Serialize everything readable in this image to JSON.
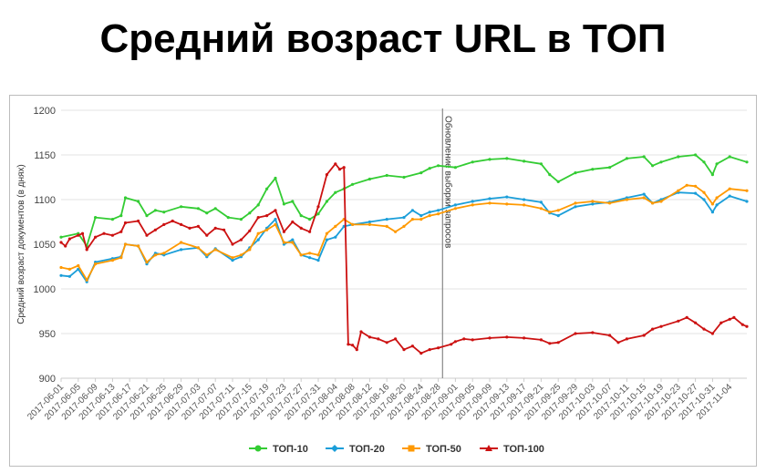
{
  "page": {
    "title": "Средний возраст URL в ТОП"
  },
  "chart_data": {
    "type": "line",
    "title": "Средний возраст URL в ТОП",
    "xlabel": "",
    "ylabel": "Средний возраст документов (в днях)",
    "ylim": [
      900,
      1200
    ],
    "yticks": [
      900,
      950,
      1000,
      1050,
      1100,
      1150,
      1200
    ],
    "grid": true,
    "legend": "bottom",
    "x_start": "2017-06-01",
    "x_end": "2017-11-08",
    "x_tick_labels": [
      "2017-06-01",
      "2017-06-05",
      "2017-06-09",
      "2017-06-13",
      "2017-06-17",
      "2017-06-21",
      "2017-06-25",
      "2017-06-29",
      "2017-07-03",
      "2017-07-07",
      "2017-07-11",
      "2017-07-15",
      "2017-07-19",
      "2017-07-23",
      "2017-07-27",
      "2017-07-31",
      "2017-08-04",
      "2017-08-08",
      "2017-08-12",
      "2017-08-16",
      "2017-08-20",
      "2017-08-24",
      "2017-08-28",
      "2017-09-01",
      "2017-09-05",
      "2017-09-09",
      "2017-09-13",
      "2017-09-17",
      "2017-09-21",
      "2017-09-25",
      "2017-09-29",
      "2017-10-03",
      "2017-10-07",
      "2017-10-11",
      "2017-10-15",
      "2017-10-19",
      "2017-10-23",
      "2017-10-27",
      "2017-10-31",
      "2017-11-04"
    ],
    "annotation": {
      "date": "2017-08-29",
      "text": "Обновление выборки запросов"
    },
    "series": [
      {
        "name": "ТОП-10",
        "color": "#33cc33",
        "points": [
          [
            "2017-06-01",
            1058
          ],
          [
            "2017-06-05",
            1062
          ],
          [
            "2017-06-07",
            1048
          ],
          [
            "2017-06-09",
            1080
          ],
          [
            "2017-06-13",
            1078
          ],
          [
            "2017-06-15",
            1082
          ],
          [
            "2017-06-16",
            1102
          ],
          [
            "2017-06-19",
            1098
          ],
          [
            "2017-06-21",
            1082
          ],
          [
            "2017-06-23",
            1088
          ],
          [
            "2017-06-25",
            1086
          ],
          [
            "2017-06-29",
            1092
          ],
          [
            "2017-07-03",
            1090
          ],
          [
            "2017-07-05",
            1085
          ],
          [
            "2017-07-07",
            1090
          ],
          [
            "2017-07-10",
            1080
          ],
          [
            "2017-07-13",
            1078
          ],
          [
            "2017-07-15",
            1085
          ],
          [
            "2017-07-17",
            1094
          ],
          [
            "2017-07-19",
            1112
          ],
          [
            "2017-07-21",
            1124
          ],
          [
            "2017-07-23",
            1095
          ],
          [
            "2017-07-25",
            1098
          ],
          [
            "2017-07-27",
            1082
          ],
          [
            "2017-07-29",
            1078
          ],
          [
            "2017-07-31",
            1084
          ],
          [
            "2017-08-02",
            1098
          ],
          [
            "2017-08-04",
            1108
          ],
          [
            "2017-08-06",
            1112
          ],
          [
            "2017-08-08",
            1117
          ],
          [
            "2017-08-12",
            1123
          ],
          [
            "2017-08-16",
            1127
          ],
          [
            "2017-08-20",
            1125
          ],
          [
            "2017-08-24",
            1130
          ],
          [
            "2017-08-26",
            1135
          ],
          [
            "2017-08-28",
            1138
          ],
          [
            "2017-09-01",
            1136
          ],
          [
            "2017-09-05",
            1142
          ],
          [
            "2017-09-09",
            1145
          ],
          [
            "2017-09-13",
            1146
          ],
          [
            "2017-09-17",
            1143
          ],
          [
            "2017-09-21",
            1140
          ],
          [
            "2017-09-23",
            1128
          ],
          [
            "2017-09-25",
            1120
          ],
          [
            "2017-09-29",
            1130
          ],
          [
            "2017-10-03",
            1134
          ],
          [
            "2017-10-07",
            1136
          ],
          [
            "2017-10-11",
            1146
          ],
          [
            "2017-10-15",
            1148
          ],
          [
            "2017-10-17",
            1138
          ],
          [
            "2017-10-19",
            1142
          ],
          [
            "2017-10-23",
            1148
          ],
          [
            "2017-10-27",
            1150
          ],
          [
            "2017-10-29",
            1142
          ],
          [
            "2017-10-31",
            1128
          ],
          [
            "2017-11-01",
            1140
          ],
          [
            "2017-11-04",
            1148
          ],
          [
            "2017-11-08",
            1142
          ]
        ]
      },
      {
        "name": "ТОП-20",
        "color": "#1a9ed9",
        "points": [
          [
            "2017-06-01",
            1015
          ],
          [
            "2017-06-03",
            1014
          ],
          [
            "2017-06-05",
            1022
          ],
          [
            "2017-06-07",
            1008
          ],
          [
            "2017-06-09",
            1030
          ],
          [
            "2017-06-13",
            1034
          ],
          [
            "2017-06-15",
            1036
          ],
          [
            "2017-06-16",
            1050
          ],
          [
            "2017-06-19",
            1048
          ],
          [
            "2017-06-21",
            1028
          ],
          [
            "2017-06-23",
            1040
          ],
          [
            "2017-06-25",
            1038
          ],
          [
            "2017-06-29",
            1044
          ],
          [
            "2017-07-03",
            1046
          ],
          [
            "2017-07-05",
            1036
          ],
          [
            "2017-07-07",
            1045
          ],
          [
            "2017-07-11",
            1032
          ],
          [
            "2017-07-13",
            1036
          ],
          [
            "2017-07-15",
            1046
          ],
          [
            "2017-07-17",
            1055
          ],
          [
            "2017-07-19",
            1068
          ],
          [
            "2017-07-21",
            1078
          ],
          [
            "2017-07-23",
            1050
          ],
          [
            "2017-07-25",
            1055
          ],
          [
            "2017-07-27",
            1038
          ],
          [
            "2017-07-29",
            1035
          ],
          [
            "2017-07-31",
            1032
          ],
          [
            "2017-08-02",
            1055
          ],
          [
            "2017-08-04",
            1058
          ],
          [
            "2017-08-06",
            1070
          ],
          [
            "2017-08-08",
            1072
          ],
          [
            "2017-08-12",
            1075
          ],
          [
            "2017-08-16",
            1078
          ],
          [
            "2017-08-20",
            1080
          ],
          [
            "2017-08-22",
            1088
          ],
          [
            "2017-08-24",
            1082
          ],
          [
            "2017-08-26",
            1086
          ],
          [
            "2017-08-28",
            1088
          ],
          [
            "2017-09-01",
            1094
          ],
          [
            "2017-09-05",
            1098
          ],
          [
            "2017-09-09",
            1101
          ],
          [
            "2017-09-13",
            1103
          ],
          [
            "2017-09-17",
            1100
          ],
          [
            "2017-09-21",
            1097
          ],
          [
            "2017-09-23",
            1085
          ],
          [
            "2017-09-25",
            1082
          ],
          [
            "2017-09-29",
            1092
          ],
          [
            "2017-10-03",
            1095
          ],
          [
            "2017-10-07",
            1097
          ],
          [
            "2017-10-11",
            1102
          ],
          [
            "2017-10-15",
            1106
          ],
          [
            "2017-10-17",
            1096
          ],
          [
            "2017-10-19",
            1100
          ],
          [
            "2017-10-23",
            1108
          ],
          [
            "2017-10-27",
            1107
          ],
          [
            "2017-10-29",
            1100
          ],
          [
            "2017-10-31",
            1086
          ],
          [
            "2017-11-01",
            1094
          ],
          [
            "2017-11-04",
            1104
          ],
          [
            "2017-11-08",
            1098
          ]
        ]
      },
      {
        "name": "ТОП-50",
        "color": "#ff9900",
        "points": [
          [
            "2017-06-01",
            1024
          ],
          [
            "2017-06-03",
            1022
          ],
          [
            "2017-06-05",
            1026
          ],
          [
            "2017-06-07",
            1010
          ],
          [
            "2017-06-09",
            1028
          ],
          [
            "2017-06-13",
            1032
          ],
          [
            "2017-06-15",
            1035
          ],
          [
            "2017-06-16",
            1050
          ],
          [
            "2017-06-19",
            1048
          ],
          [
            "2017-06-21",
            1030
          ],
          [
            "2017-06-23",
            1038
          ],
          [
            "2017-06-25",
            1040
          ],
          [
            "2017-06-29",
            1052
          ],
          [
            "2017-07-03",
            1046
          ],
          [
            "2017-07-05",
            1038
          ],
          [
            "2017-07-07",
            1044
          ],
          [
            "2017-07-11",
            1035
          ],
          [
            "2017-07-13",
            1038
          ],
          [
            "2017-07-15",
            1044
          ],
          [
            "2017-07-17",
            1062
          ],
          [
            "2017-07-19",
            1066
          ],
          [
            "2017-07-21",
            1072
          ],
          [
            "2017-07-23",
            1052
          ],
          [
            "2017-07-25",
            1052
          ],
          [
            "2017-07-27",
            1038
          ],
          [
            "2017-07-29",
            1040
          ],
          [
            "2017-07-31",
            1038
          ],
          [
            "2017-08-02",
            1062
          ],
          [
            "2017-08-04",
            1070
          ],
          [
            "2017-08-06",
            1078
          ],
          [
            "2017-08-08",
            1072
          ],
          [
            "2017-08-12",
            1072
          ],
          [
            "2017-08-16",
            1070
          ],
          [
            "2017-08-18",
            1064
          ],
          [
            "2017-08-20",
            1070
          ],
          [
            "2017-08-22",
            1078
          ],
          [
            "2017-08-24",
            1078
          ],
          [
            "2017-08-26",
            1082
          ],
          [
            "2017-08-28",
            1084
          ],
          [
            "2017-09-01",
            1090
          ],
          [
            "2017-09-05",
            1094
          ],
          [
            "2017-09-09",
            1096
          ],
          [
            "2017-09-13",
            1095
          ],
          [
            "2017-09-17",
            1094
          ],
          [
            "2017-09-21",
            1090
          ],
          [
            "2017-09-23",
            1086
          ],
          [
            "2017-09-25",
            1088
          ],
          [
            "2017-09-29",
            1096
          ],
          [
            "2017-10-03",
            1098
          ],
          [
            "2017-10-07",
            1096
          ],
          [
            "2017-10-11",
            1100
          ],
          [
            "2017-10-15",
            1102
          ],
          [
            "2017-10-17",
            1096
          ],
          [
            "2017-10-19",
            1098
          ],
          [
            "2017-10-23",
            1110
          ],
          [
            "2017-10-25",
            1116
          ],
          [
            "2017-10-27",
            1115
          ],
          [
            "2017-10-29",
            1108
          ],
          [
            "2017-10-31",
            1095
          ],
          [
            "2017-11-01",
            1102
          ],
          [
            "2017-11-04",
            1112
          ],
          [
            "2017-11-08",
            1110
          ]
        ]
      },
      {
        "name": "ТОП-100",
        "color": "#cc1111",
        "points": [
          [
            "2017-06-01",
            1052
          ],
          [
            "2017-06-02",
            1048
          ],
          [
            "2017-06-03",
            1056
          ],
          [
            "2017-06-05",
            1060
          ],
          [
            "2017-06-06",
            1062
          ],
          [
            "2017-06-07",
            1044
          ],
          [
            "2017-06-09",
            1058
          ],
          [
            "2017-06-11",
            1062
          ],
          [
            "2017-06-13",
            1060
          ],
          [
            "2017-06-15",
            1064
          ],
          [
            "2017-06-16",
            1074
          ],
          [
            "2017-06-19",
            1076
          ],
          [
            "2017-06-21",
            1060
          ],
          [
            "2017-06-23",
            1066
          ],
          [
            "2017-06-25",
            1072
          ],
          [
            "2017-06-27",
            1076
          ],
          [
            "2017-06-29",
            1072
          ],
          [
            "2017-07-01",
            1068
          ],
          [
            "2017-07-03",
            1070
          ],
          [
            "2017-07-05",
            1060
          ],
          [
            "2017-07-07",
            1068
          ],
          [
            "2017-07-09",
            1066
          ],
          [
            "2017-07-11",
            1050
          ],
          [
            "2017-07-13",
            1055
          ],
          [
            "2017-07-15",
            1065
          ],
          [
            "2017-07-17",
            1080
          ],
          [
            "2017-07-19",
            1082
          ],
          [
            "2017-07-21",
            1088
          ],
          [
            "2017-07-23",
            1064
          ],
          [
            "2017-07-25",
            1075
          ],
          [
            "2017-07-27",
            1068
          ],
          [
            "2017-07-29",
            1064
          ],
          [
            "2017-07-31",
            1092
          ],
          [
            "2017-08-02",
            1128
          ],
          [
            "2017-08-04",
            1140
          ],
          [
            "2017-08-05",
            1134
          ],
          [
            "2017-08-06",
            1136
          ],
          [
            "2017-08-07",
            938
          ],
          [
            "2017-08-08",
            937
          ],
          [
            "2017-08-09",
            932
          ],
          [
            "2017-08-10",
            952
          ],
          [
            "2017-08-12",
            946
          ],
          [
            "2017-08-14",
            944
          ],
          [
            "2017-08-16",
            940
          ],
          [
            "2017-08-18",
            944
          ],
          [
            "2017-08-20",
            932
          ],
          [
            "2017-08-22",
            936
          ],
          [
            "2017-08-24",
            928
          ],
          [
            "2017-08-26",
            932
          ],
          [
            "2017-08-28",
            934
          ],
          [
            "2017-08-31",
            938
          ],
          [
            "2017-09-01",
            941
          ],
          [
            "2017-09-03",
            944
          ],
          [
            "2017-09-05",
            943
          ],
          [
            "2017-09-09",
            945
          ],
          [
            "2017-09-13",
            946
          ],
          [
            "2017-09-17",
            945
          ],
          [
            "2017-09-21",
            943
          ],
          [
            "2017-09-23",
            939
          ],
          [
            "2017-09-25",
            940
          ],
          [
            "2017-09-29",
            950
          ],
          [
            "2017-10-03",
            951
          ],
          [
            "2017-10-07",
            948
          ],
          [
            "2017-10-09",
            940
          ],
          [
            "2017-10-11",
            944
          ],
          [
            "2017-10-15",
            948
          ],
          [
            "2017-10-17",
            955
          ],
          [
            "2017-10-19",
            958
          ],
          [
            "2017-10-23",
            964
          ],
          [
            "2017-10-25",
            968
          ],
          [
            "2017-10-27",
            962
          ],
          [
            "2017-10-29",
            955
          ],
          [
            "2017-10-31",
            950
          ],
          [
            "2017-11-02",
            962
          ],
          [
            "2017-11-04",
            966
          ],
          [
            "2017-11-05",
            968
          ],
          [
            "2017-11-07",
            960
          ],
          [
            "2017-11-08",
            958
          ]
        ]
      }
    ]
  }
}
